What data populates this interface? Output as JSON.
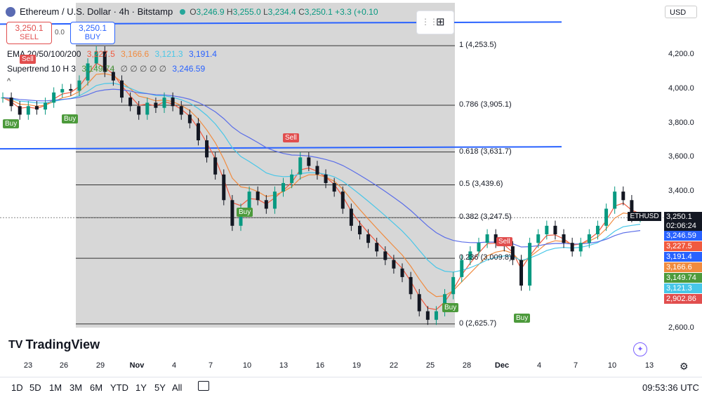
{
  "header": {
    "title": "Ethereum / U.S. Dollar · 4h · Bitstamp",
    "open": "3,246.9",
    "high": "3,255.0",
    "low": "3,234.4",
    "close": "3,250.1",
    "change": "+3.3 (+0.10",
    "open_label": "O",
    "high_label": "H",
    "low_label": "L",
    "close_label": "C"
  },
  "trade": {
    "sell_price": "3,250.1",
    "sell_label": "SELL",
    "spread": "0.0",
    "buy_price": "3,250.1",
    "buy_label": "BUY"
  },
  "ema_legend": {
    "name": "EMA 20/50/100/200",
    "v1": "3,227.5",
    "v2": "3,166.6",
    "v3": "3,121.3",
    "v4": "3,191.4"
  },
  "st_legend": {
    "name": "Supertrend 10 H 3",
    "v1": "3,149.74",
    "dots": "∅ ∅ ∅ ∅ ∅",
    "v2": "3,246.59"
  },
  "currency": "USD",
  "fib_levels": [
    {
      "label": "1 (4,253.5)",
      "price": 4253.5
    },
    {
      "label": "0.786 (3,905.1)",
      "price": 3905.1
    },
    {
      "label": "0.618 (3,631.7)",
      "price": 3631.7
    },
    {
      "label": "0.5 (3,439.6)",
      "price": 3439.6
    },
    {
      "label": "0.382 (3,247.5)",
      "price": 3247.5
    },
    {
      "label": "0.236 (3,009.8)",
      "price": 3009.8
    },
    {
      "label": "0 (2,625.7)",
      "price": 2625.7
    }
  ],
  "y_axis": [
    "4,200.0",
    "4,000.0",
    "3,800.0",
    "3,600.0",
    "3,400.0",
    "2,600.0"
  ],
  "x_axis": [
    {
      "label": "23",
      "bold": false
    },
    {
      "label": "26",
      "bold": false
    },
    {
      "label": "29",
      "bold": false
    },
    {
      "label": "Nov",
      "bold": true
    },
    {
      "label": "4",
      "bold": false
    },
    {
      "label": "7",
      "bold": false
    },
    {
      "label": "10",
      "bold": false
    },
    {
      "label": "13",
      "bold": false
    },
    {
      "label": "16",
      "bold": false
    },
    {
      "label": "19",
      "bold": false
    },
    {
      "label": "22",
      "bold": false
    },
    {
      "label": "25",
      "bold": false
    },
    {
      "label": "28",
      "bold": false
    },
    {
      "label": "Dec",
      "bold": true
    },
    {
      "label": "4",
      "bold": false
    },
    {
      "label": "7",
      "bold": false
    },
    {
      "label": "10",
      "bold": false
    },
    {
      "label": "13",
      "bold": false
    }
  ],
  "price_tags": [
    {
      "text": "3,250.1",
      "color": "#131722"
    },
    {
      "text": "02:06:24",
      "color": "#131722"
    },
    {
      "text": "3,246.59",
      "color": "#2962ff"
    },
    {
      "text": "3,227.5",
      "color": "#f05a3f"
    },
    {
      "text": "3,191.4",
      "color": "#2962ff"
    },
    {
      "text": "3,166.6",
      "color": "#f08b3f"
    },
    {
      "text": "3,149.74",
      "color": "#4c9a3b"
    },
    {
      "text": "3,121.3",
      "color": "#48c7e8"
    },
    {
      "text": "2,902.86",
      "color": "#e14e4e"
    }
  ],
  "symbol_tag": "ETHUSD",
  "signals": [
    {
      "label": "Sell",
      "type": "sell"
    },
    {
      "label": "Buy",
      "type": "buy"
    },
    {
      "label": "Buy",
      "type": "buy"
    },
    {
      "label": "Sell",
      "type": "sell"
    },
    {
      "label": "Buy",
      "type": "buy"
    },
    {
      "label": "Sell",
      "type": "sell"
    },
    {
      "label": "Buy",
      "type": "buy"
    },
    {
      "label": "Buy",
      "type": "buy"
    }
  ],
  "logo": "TradingView",
  "ranges": [
    "1D",
    "5D",
    "1M",
    "3M",
    "6M",
    "YTD",
    "1Y",
    "5Y",
    "All"
  ],
  "clock": "09:53:36 UTC",
  "colors": {
    "up": "#089981",
    "down": "#131722",
    "ema20": "#f05a3f",
    "ema50": "#f08b3f",
    "ema100": "#48c7e8",
    "ema200": "#5b6ee8",
    "supertrend_up": "#4c9a3b",
    "supertrend_down": "#e14e4e",
    "trendline": "#2962ff"
  },
  "chart_data": {
    "type": "candlestick",
    "symbol": "ETHUSD",
    "timeframe": "4h",
    "ylim": [
      2600,
      4300
    ],
    "x_range": [
      "Oct 22",
      "Dec 13"
    ],
    "closes": [
      3950,
      3900,
      3850,
      3900,
      3880,
      3920,
      3980,
      4000,
      3990,
      4050,
      4150,
      4220,
      4100,
      4050,
      3950,
      3900,
      3850,
      3920,
      3890,
      3950,
      3900,
      3850,
      3800,
      3700,
      3600,
      3500,
      3350,
      3200,
      3300,
      3400,
      3350,
      3300,
      3400,
      3450,
      3500,
      3600,
      3550,
      3500,
      3450,
      3400,
      3300,
      3200,
      3150,
      3100,
      3050,
      3000,
      2950,
      2900,
      2800,
      2700,
      2650,
      2700,
      2800,
      2900,
      3000,
      3050,
      3100,
      3150,
      3100,
      3080,
      3000,
      2850,
      3100,
      3150,
      3200,
      3150,
      3100,
      3050,
      3100,
      3150,
      3200,
      3300,
      3400,
      3350,
      3250,
      3250
    ]
  }
}
